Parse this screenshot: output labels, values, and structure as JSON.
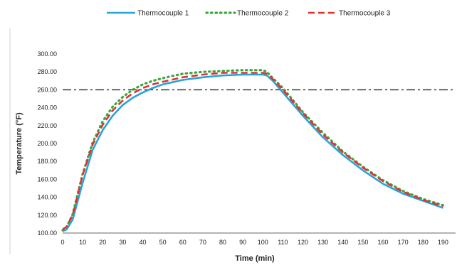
{
  "chart_data": {
    "type": "line",
    "title": "",
    "xlabel": "Time (min)",
    "ylabel": "Temperature (°F)",
    "xlim": [
      0,
      192
    ],
    "ylim": [
      100,
      300
    ],
    "xticks": [
      0,
      10,
      20,
      30,
      40,
      50,
      60,
      70,
      80,
      90,
      100,
      110,
      120,
      130,
      140,
      150,
      160,
      170,
      180,
      190
    ],
    "yticks": [
      100,
      120,
      140,
      160,
      180,
      200,
      220,
      240,
      260,
      280,
      300
    ],
    "ytick_labels": [
      "100.00",
      "120.00",
      "140.00",
      "160.00",
      "180.00",
      "200.00",
      "220.00",
      "240.00",
      "260.00",
      "280.00",
      "300.00"
    ],
    "grid": false,
    "legend_position": "top",
    "reference_line": {
      "y": 260,
      "style": "dash-dot",
      "color": "#333333"
    },
    "series": [
      {
        "name": "Thermocouple 1",
        "color": "#29a3dc",
        "style": "solid",
        "x": [
          0,
          2,
          5,
          10,
          15,
          20,
          25,
          30,
          35,
          40,
          45,
          50,
          60,
          70,
          80,
          90,
          100,
          102,
          105,
          110,
          120,
          130,
          140,
          150,
          160,
          170,
          180,
          190
        ],
        "y": [
          102,
          104,
          115,
          156,
          193,
          215,
          231,
          243,
          251,
          257,
          262,
          266,
          271,
          274,
          276,
          277,
          277,
          276,
          270,
          257,
          231,
          207,
          187,
          170,
          155,
          144,
          136,
          128
        ]
      },
      {
        "name": "Thermocouple 2",
        "color": "#3aa73f",
        "style": "dotted",
        "x": [
          0,
          2,
          5,
          10,
          15,
          20,
          25,
          30,
          35,
          40,
          45,
          50,
          60,
          70,
          80,
          90,
          100,
          102,
          105,
          110,
          120,
          130,
          140,
          150,
          160,
          170,
          180,
          190
        ],
        "y": [
          103,
          107,
          121,
          166,
          201,
          225,
          241,
          252,
          260,
          266,
          270,
          273,
          278,
          280,
          281,
          282,
          282,
          280,
          273,
          262,
          235,
          212,
          191,
          174,
          159,
          147,
          138,
          131
        ]
      },
      {
        "name": "Thermocouple 3",
        "color": "#e4312b",
        "style": "dashed",
        "x": [
          0,
          2,
          5,
          10,
          15,
          20,
          25,
          30,
          35,
          40,
          45,
          50,
          60,
          70,
          80,
          90,
          100,
          102,
          105,
          110,
          120,
          130,
          140,
          150,
          160,
          170,
          180,
          190
        ],
        "y": [
          104,
          107,
          120,
          165,
          199,
          221,
          237,
          248,
          256,
          262,
          266,
          269,
          274,
          277,
          279,
          279,
          279,
          278,
          272,
          260,
          234,
          210,
          190,
          173,
          158,
          146,
          137,
          130
        ]
      }
    ]
  }
}
